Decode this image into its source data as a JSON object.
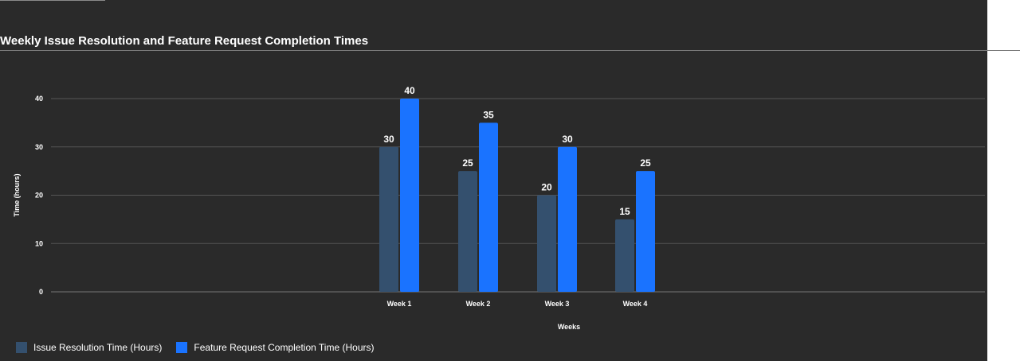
{
  "chart_data": {
    "type": "bar",
    "title": "Weekly Issue Resolution and Feature Request Completion Times",
    "xlabel": "Weeks",
    "ylabel": "Time (hours)",
    "categories": [
      "Week 1",
      "Week 2",
      "Week 3",
      "Week 4"
    ],
    "ylim": [
      0,
      40
    ],
    "yticks": [
      0,
      10,
      20,
      30,
      40
    ],
    "grid": true,
    "legend_position": "bottom-left",
    "series": [
      {
        "name": "Issue Resolution Time (Hours)",
        "values": [
          30,
          25,
          20,
          15
        ],
        "color": "#34506e"
      },
      {
        "name": "Feature Request Completion Time (Hours)",
        "values": [
          40,
          35,
          30,
          25
        ],
        "color": "#1a73ff"
      }
    ]
  }
}
